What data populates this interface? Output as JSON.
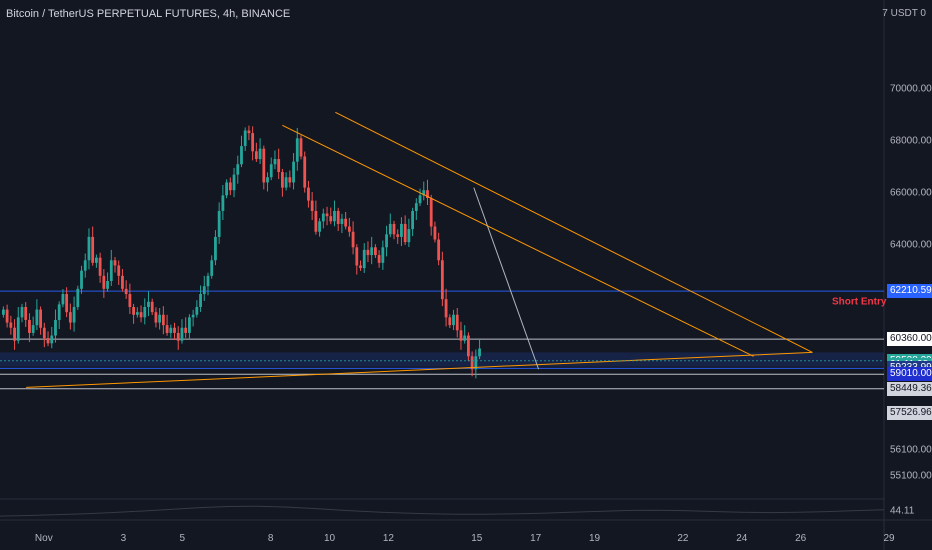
{
  "header": {
    "symbol_title": "Bitcoin / TetherUS PERPETUAL FUTURES, 4h, BINANCE"
  },
  "axis": {
    "currency_label": "7 USDT 0"
  },
  "chart_data": {
    "type": "candlestick",
    "instrument": "Bitcoin / TetherUS PERPETUAL FUTURES",
    "timeframe": "4h",
    "exchange": "BINANCE",
    "ylim": [
      54150,
      72600
    ],
    "y_ticks": [
      {
        "value": 70000,
        "label": "70000.00"
      },
      {
        "value": 68000,
        "label": "68000.00"
      },
      {
        "value": 66000,
        "label": "66000.00"
      },
      {
        "value": 64000,
        "label": "64000.00"
      },
      {
        "value": 56100,
        "label": "56100.00"
      },
      {
        "value": 55100,
        "label": "55100.00"
      }
    ],
    "bottom_edge_label": "44.11",
    "x_ticks": [
      {
        "day": 0.3,
        "label": "Nov"
      },
      {
        "day": 3,
        "label": "3"
      },
      {
        "day": 5,
        "label": "5"
      },
      {
        "day": 8,
        "label": "8"
      },
      {
        "day": 10,
        "label": "10"
      },
      {
        "day": 12,
        "label": "12"
      },
      {
        "day": 15,
        "label": "15"
      },
      {
        "day": 17,
        "label": "17"
      },
      {
        "day": 19,
        "label": "19"
      },
      {
        "day": 22,
        "label": "22"
      },
      {
        "day": 24,
        "label": "24"
      },
      {
        "day": 26,
        "label": "26"
      },
      {
        "day": 29,
        "label": "29"
      }
    ],
    "closes": [
      61500,
      61000,
      60800,
      60300,
      61200,
      61600,
      61100,
      60600,
      60900,
      61500,
      60800,
      60400,
      60200,
      60500,
      61100,
      61700,
      62100,
      61400,
      61000,
      61600,
      62300,
      63000,
      63400,
      64300,
      63300,
      63500,
      62800,
      62300,
      62600,
      63400,
      63200,
      62800,
      62300,
      62100,
      61600,
      61300,
      61400,
      61200,
      61600,
      61800,
      61400,
      61000,
      61300,
      60900,
      60600,
      60800,
      60600,
      60300,
      60800,
      60600,
      61200,
      61300,
      61600,
      62100,
      62400,
      62800,
      63400,
      64300,
      65300,
      65900,
      66400,
      66100,
      66700,
      67100,
      67800,
      68400,
      68300,
      67600,
      67300,
      67700,
      66400,
      66600,
      67100,
      67300,
      66800,
      66200,
      66600,
      66400,
      67200,
      68100,
      67400,
      66200,
      65700,
      65300,
      64500,
      64900,
      65200,
      65100,
      64900,
      65300,
      64800,
      65000,
      64700,
      64500,
      63900,
      63200,
      63100,
      63800,
      63600,
      63900,
      63600,
      63300,
      63900,
      64400,
      64800,
      64400,
      64300,
      64800,
      64100,
      64600,
      65300,
      65600,
      65900,
      66100,
      65800,
      64700,
      64200,
      63400,
      61900,
      61200,
      60900,
      61300,
      60700,
      60300,
      60500,
      59700,
      59200,
      59700,
      60000
    ],
    "indicator": {
      "values": [
        0.18,
        0.22,
        0.27,
        0.33,
        0.41,
        0.5,
        0.6,
        0.71,
        0.78,
        0.8,
        0.75,
        0.66,
        0.55,
        0.45,
        0.38,
        0.33,
        0.3,
        0.3,
        0.32,
        0.36,
        0.42,
        0.48,
        0.53,
        0.55,
        0.52,
        0.47,
        0.42,
        0.4,
        0.42,
        0.46,
        0.52,
        0.58
      ]
    },
    "trendlines": [
      {
        "from": [
          10.2,
          69100
        ],
        "to": [
          26.4,
          59850
        ],
        "color": "#ff9800"
      },
      {
        "from": [
          8.4,
          68600
        ],
        "to": [
          24.4,
          59700
        ],
        "color": "#ff9800"
      },
      {
        "from": [
          -0.3,
          58500
        ],
        "to": [
          26.4,
          59850
        ],
        "color": "#ff9800"
      },
      {
        "from": [
          14.9,
          66200
        ],
        "to": [
          17.1,
          59200
        ],
        "color": "#b2b5be"
      }
    ],
    "horizontal_levels": [
      {
        "value": 62210.59,
        "color": "#2962ff"
      },
      {
        "value": 60360,
        "color": "#d1d4dc"
      },
      {
        "value": 59233.99,
        "color": "#2962ff"
      },
      {
        "value": 59010,
        "color": "#d1d4dc"
      },
      {
        "value": 58449.36,
        "color": "#d1d4dc"
      }
    ],
    "price_zone": {
      "from": 59300,
      "to": 59850
    },
    "price_tags": [
      {
        "value": 62210.59,
        "label": "62210.59",
        "bg": "#2962ff",
        "fg": "#ffffff"
      },
      {
        "value": 60360.0,
        "label": "60360.00",
        "bg": "#ffffff",
        "fg": "#131722"
      },
      {
        "value": 59528.29,
        "label": "59528.29",
        "bg": "#26a69a",
        "fg": "#ffffff"
      },
      {
        "value": 59380,
        "label": "01:11:08",
        "bg": "#26a69a",
        "fg": "#ffffff"
      },
      {
        "value": 59233.99,
        "label": "59233.99",
        "bg": "#1e3a8a",
        "fg": "#ffffff"
      },
      {
        "value": 59010.0,
        "label": "59010.00",
        "bg": "#1f2fd0",
        "fg": "#ffffff"
      },
      {
        "value": 58449.36,
        "label": "58449.36",
        "bg": "#d1d4dc",
        "fg": "#131722"
      },
      {
        "value": 57526.96,
        "label": "57526.96",
        "bg": "#d1d4dc",
        "fg": "#131722"
      }
    ],
    "annotations": [
      {
        "text": "Short Entry",
        "value": 61800,
        "color": "#f23645"
      }
    ],
    "colors": {
      "up": "#26a69a",
      "down": "#ef5350",
      "background": "#131722",
      "trendline": "#ff9800"
    }
  }
}
